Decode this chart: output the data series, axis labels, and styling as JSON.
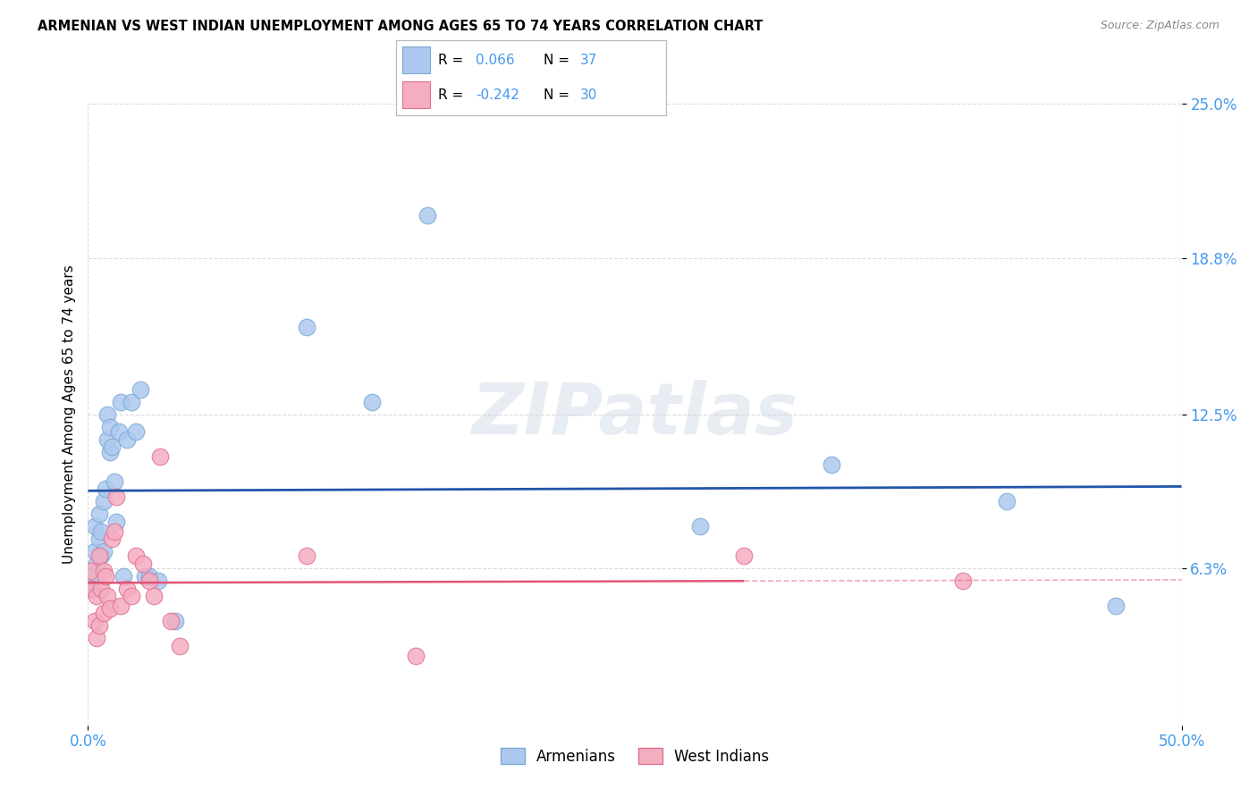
{
  "title": "ARMENIAN VS WEST INDIAN UNEMPLOYMENT AMONG AGES 65 TO 74 YEARS CORRELATION CHART",
  "source": "Source: ZipAtlas.com",
  "ylabel": "Unemployment Among Ages 65 to 74 years",
  "xlim": [
    0.0,
    0.5
  ],
  "ylim": [
    0.0,
    0.25
  ],
  "x_ticks": [
    0.0,
    0.5
  ],
  "x_tick_labels": [
    "0.0%",
    "50.0%"
  ],
  "y_tick_positions": [
    0.063,
    0.125,
    0.188,
    0.25
  ],
  "y_tick_labels": [
    "6.3%",
    "12.5%",
    "18.8%",
    "25.0%"
  ],
  "armenian_color": "#adc8ee",
  "armenian_edge_color": "#7aaad4",
  "west_indian_color": "#f5adc0",
  "west_indian_edge_color": "#e07090",
  "armenian_R": 0.066,
  "armenian_N": 37,
  "west_indian_R": -0.242,
  "west_indian_N": 30,
  "armenian_line_color": "#2255aa",
  "west_indian_line_color": "#e05575",
  "watermark_text": "ZIPatlas",
  "legend_label_armenians": "Armenians",
  "legend_label_west_indians": "West Indians",
  "armenian_x": [
    0.001,
    0.002,
    0.003,
    0.003,
    0.004,
    0.005,
    0.005,
    0.006,
    0.006,
    0.007,
    0.007,
    0.008,
    0.009,
    0.009,
    0.01,
    0.01,
    0.011,
    0.012,
    0.013,
    0.014,
    0.015,
    0.016,
    0.018,
    0.02,
    0.022,
    0.024,
    0.026,
    0.028,
    0.032,
    0.04,
    0.1,
    0.13,
    0.155,
    0.28,
    0.34,
    0.42,
    0.47
  ],
  "armenian_y": [
    0.06,
    0.055,
    0.07,
    0.08,
    0.065,
    0.075,
    0.085,
    0.068,
    0.078,
    0.07,
    0.09,
    0.095,
    0.125,
    0.115,
    0.11,
    0.12,
    0.112,
    0.098,
    0.082,
    0.118,
    0.13,
    0.06,
    0.115,
    0.13,
    0.118,
    0.135,
    0.06,
    0.06,
    0.058,
    0.042,
    0.16,
    0.13,
    0.205,
    0.08,
    0.105,
    0.09,
    0.048
  ],
  "west_indian_x": [
    0.001,
    0.002,
    0.003,
    0.004,
    0.004,
    0.005,
    0.005,
    0.006,
    0.007,
    0.007,
    0.008,
    0.009,
    0.01,
    0.011,
    0.012,
    0.013,
    0.015,
    0.018,
    0.02,
    0.022,
    0.025,
    0.028,
    0.03,
    0.033,
    0.038,
    0.042,
    0.1,
    0.15,
    0.3,
    0.4
  ],
  "west_indian_y": [
    0.062,
    0.055,
    0.042,
    0.052,
    0.035,
    0.04,
    0.068,
    0.055,
    0.062,
    0.045,
    0.06,
    0.052,
    0.047,
    0.075,
    0.078,
    0.092,
    0.048,
    0.055,
    0.052,
    0.068,
    0.065,
    0.058,
    0.052,
    0.108,
    0.042,
    0.032,
    0.068,
    0.028,
    0.068,
    0.058
  ],
  "marker_size": 180,
  "background_color": "#ffffff",
  "grid_color": "#cccccc",
  "grid_alpha": 0.7,
  "tick_color": "#4499ee",
  "wi_line_solid_end": 0.3
}
